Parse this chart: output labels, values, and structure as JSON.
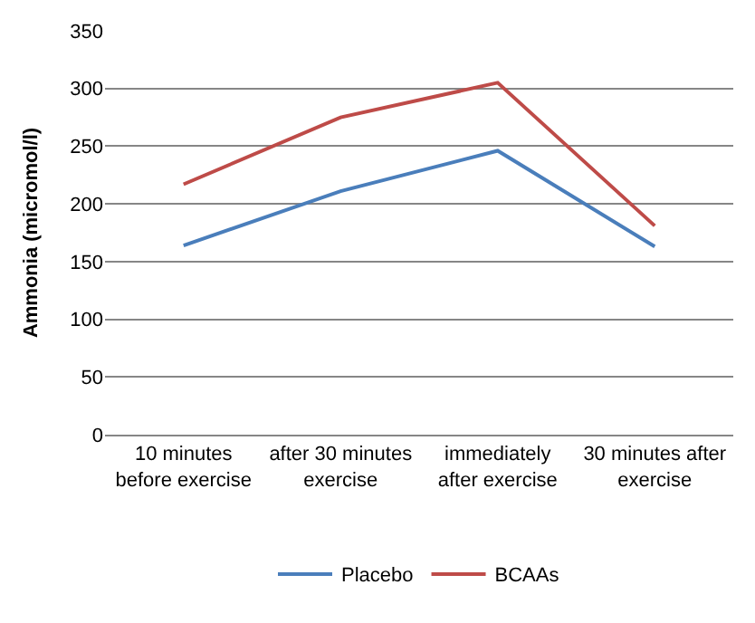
{
  "chart_data": {
    "type": "line",
    "ylabel": "Ammonia (micromol/l)",
    "categories": [
      "10 minutes before exercise",
      "after 30 minutes exercise",
      "immediately after exercise",
      "30 minutes after exercise"
    ],
    "series": [
      {
        "name": "Placebo",
        "color": "#4a7ebb",
        "values": [
          164,
          211,
          246,
          163
        ]
      },
      {
        "name": "BCAAs",
        "color": "#be4b48",
        "values": [
          217,
          275,
          305,
          181
        ]
      }
    ],
    "ylim": [
      0,
      350
    ],
    "yticks": [
      0,
      50,
      100,
      150,
      200,
      250,
      300,
      350
    ],
    "grid": "y",
    "legend": "bottom",
    "marker": "none",
    "line_style": "solid"
  }
}
